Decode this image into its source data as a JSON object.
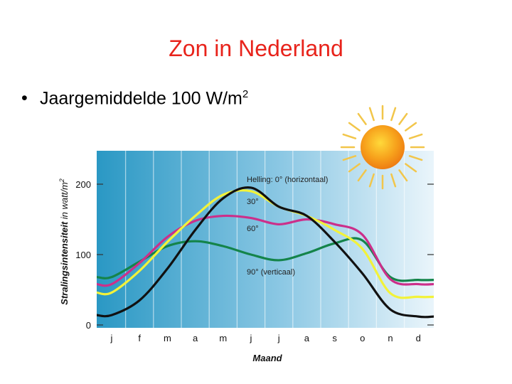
{
  "slide": {
    "title": "Zon in Nederland",
    "bullet": "Jaargemiddelde 100 W/m",
    "bullet_sup": "2"
  },
  "chart_data": {
    "type": "line",
    "title": "",
    "xlabel": "Maand",
    "ylabel_bold": "Stralingsintensiteit",
    "ylabel_rest": " in watt/m",
    "ylabel_sup": "2",
    "categories": [
      "j",
      "f",
      "m",
      "a",
      "m",
      "j",
      "j",
      "a",
      "s",
      "o",
      "n",
      "d"
    ],
    "yticks": [
      0,
      100,
      200
    ],
    "ylim": [
      0,
      250
    ],
    "grid": true,
    "series": [
      {
        "name": "Helling: 0° (horizontaal)",
        "color": "#111111",
        "values": [
          14,
          35,
          80,
          135,
          180,
          195,
          168,
          155,
          118,
          73,
          22,
          12
        ]
      },
      {
        "name": "30°",
        "color": "#f2f23a",
        "values": [
          46,
          77,
          118,
          155,
          185,
          190,
          168,
          155,
          135,
          108,
          45,
          40
        ]
      },
      {
        "name": "60°",
        "color": "#cc2f8a",
        "values": [
          58,
          88,
          125,
          148,
          155,
          152,
          143,
          150,
          143,
          128,
          65,
          58
        ]
      },
      {
        "name": "90° (verticaal)",
        "color": "#14844a",
        "values": [
          68,
          90,
          112,
          119,
          112,
          100,
          92,
          102,
          116,
          120,
          68,
          64
        ]
      }
    ]
  }
}
